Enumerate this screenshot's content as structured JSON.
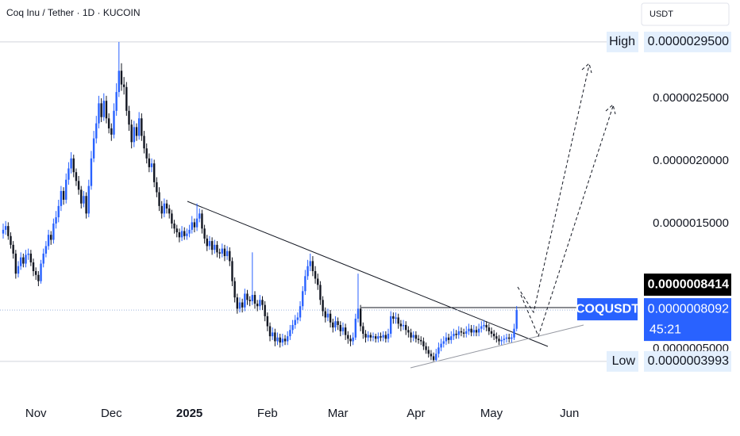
{
  "chart_data": {
    "type": "candlestick",
    "title": "Coq Inu / Tether · 1D · KUCOIN",
    "currency": "USDT",
    "up_color": "#2962ff",
    "down_color": "#131722",
    "grid": false,
    "xlim": [
      -1.26,
      251.1
    ],
    "xticks": [
      {
        "value": 13,
        "label": "Nov"
      },
      {
        "value": 43,
        "label": "Dec"
      },
      {
        "value": 74,
        "label": "2025"
      },
      {
        "value": 105,
        "label": "Feb"
      },
      {
        "value": 133,
        "label": "Mar"
      },
      {
        "value": 164,
        "label": "Apr"
      },
      {
        "value": 194,
        "label": "May"
      },
      {
        "value": 225,
        "label": "Jun"
      }
    ],
    "ylim": [
      1.2e-07,
      3.285e-06
    ],
    "yticks": [
      {
        "value": 2.5e-06,
        "label": "0.0000025000"
      },
      {
        "value": 2e-06,
        "label": "0.0000020000"
      },
      {
        "value": 1.5e-06,
        "label": "0.0000015000"
      },
      {
        "value": 5e-07,
        "label": "0.0000005000"
      }
    ],
    "open": [
      1.42e-06,
      1.45e-06,
      1.48e-06,
      1.4e-06,
      1.33e-06,
      1.26e-06,
      1.1e-06,
      1.16e-06,
      1.23e-06,
      1.18e-06,
      1.25e-06,
      1.26e-06,
      1.19e-06,
      1.12e-06,
      1.09e-06,
      1.04e-06,
      1.18e-06,
      1.26e-06,
      1.32e-06,
      1.41e-06,
      1.37e-06,
      1.5e-06,
      1.55e-06,
      1.64e-06,
      1.76e-06,
      1.69e-06,
      1.85e-06,
      1.94e-06,
      2.02e-06,
      1.91e-06,
      1.84e-06,
      1.77e-06,
      1.66e-06,
      1.72e-06,
      1.58e-06,
      1.8e-06,
      2.02e-06,
      2.18e-06,
      2.3e-06,
      2.46e-06,
      2.35e-06,
      2.48e-06,
      2.34e-06,
      2.26e-06,
      2.21e-06,
      2.4e-06,
      2.55e-06,
      2.72e-06,
      2.61e-06,
      2.59e-06,
      2.4e-06,
      2.29e-06,
      2.15e-06,
      2.27e-06,
      2.2e-06,
      2.34e-06,
      2.2e-06,
      2.1e-06,
      2.02e-06,
      1.95e-06,
      1.98e-06,
      1.83e-06,
      1.75e-06,
      1.64e-06,
      1.58e-06,
      1.66e-06,
      1.62e-06,
      1.58e-06,
      1.5e-06,
      1.46e-06,
      1.43e-06,
      1.39e-06,
      1.44e-06,
      1.4e-06,
      1.42e-06,
      1.45e-06,
      1.51e-06,
      1.47e-06,
      1.54e-06,
      1.58e-06,
      1.46e-06,
      1.38e-06,
      1.32e-06,
      1.36e-06,
      1.29e-06,
      1.33e-06,
      1.27e-06,
      1.26e-06,
      1.3e-06,
      1.24e-06,
      1.28e-06,
      1.2e-06,
      1.04e-06,
      9.1e-07,
      8.2e-07,
      8.7e-07,
      8.3e-07,
      9.4e-07,
      8.9e-07,
      8.8e-07,
      9.3e-07,
      8.6e-07,
      8.4e-07,
      8.9e-07,
      8.5e-07,
      7.6e-07,
      6.8e-07,
      6e-07,
      6.3e-07,
      5.6e-07,
      5.9e-07,
      5.5e-07,
      5.8e-07,
      5.6e-07,
      6e-07,
      6.5e-07,
      6.9e-07,
      7.3e-07,
      7.5e-07,
      8.4e-07,
      9.6e-07,
      1.08e-06,
      1.16e-06,
      1.2e-06,
      1.12e-06,
      1.06e-06,
      1.01e-06,
      8.9e-07,
      8e-07,
      7.5e-07,
      7.8e-07,
      7.1e-07,
      6.7e-07,
      7.2e-07,
      6.9e-07,
      6.4e-07,
      6.7e-07,
      6.1e-07,
      5.8e-07,
      5.6e-07,
      5.9e-07,
      7.4e-07,
      8.2e-07,
      6.8e-07,
      6.2e-07,
      5.9e-07,
      6.1e-07,
      5.9e-07,
      6e-07,
      5.8e-07,
      6e-07,
      5.9e-07,
      6.1e-07,
      5.8e-07,
      6.2e-07,
      7.6e-07,
      7.4e-07,
      7.5e-07,
      7e-07,
      6.8e-07,
      6.9e-07,
      6.5e-07,
      6.3e-07,
      5.9e-07,
      6.1e-07,
      5.8e-07,
      5.7e-07,
      5.6e-07,
      5.2e-07,
      4.9e-07,
      4.6e-07,
      4.4e-07,
      4.1e-07,
      4.6e-07,
      5.1e-07,
      5.4e-07,
      5.6e-07,
      5.9e-07,
      5.7e-07,
      6e-07,
      6.2e-07,
      6.1e-07,
      6.4e-07,
      6.3e-07,
      6.2e-07,
      6.4e-07,
      6.6e-07,
      6.3e-07,
      6.5e-07,
      6.3e-07,
      6.6e-07,
      6.8e-07,
      6.9e-07,
      6.7e-07,
      6.4e-07,
      6.2e-07,
      6e-07,
      5.8e-07,
      5.6e-07,
      5.7e-07,
      5.8e-07,
      5.9e-07,
      5.8e-07,
      5.9e-07,
      6.6e-07
    ],
    "high": [
      1.5e-06,
      1.52e-06,
      1.51e-06,
      1.43e-06,
      1.36e-06,
      1.29e-06,
      1.2e-06,
      1.27e-06,
      1.26e-06,
      1.29e-06,
      1.3e-06,
      1.29e-06,
      1.22e-06,
      1.15e-06,
      1.12e-06,
      1.21e-06,
      1.3e-06,
      1.36e-06,
      1.45e-06,
      1.44e-06,
      1.54e-06,
      1.6e-06,
      1.69e-06,
      1.8e-06,
      1.79e-06,
      1.9e-06,
      1.99e-06,
      2.07e-06,
      2.05e-06,
      1.94e-06,
      1.88e-06,
      1.8e-06,
      1.76e-06,
      1.75e-06,
      1.85e-06,
      2.08e-06,
      2.24e-06,
      2.36e-06,
      2.52e-06,
      2.5e-06,
      2.54e-06,
      2.52e-06,
      2.38e-06,
      2.3e-06,
      2.46e-06,
      2.62e-06,
      2.95e-06,
      2.78e-06,
      2.67e-06,
      2.63e-06,
      2.44e-06,
      2.33e-06,
      2.32e-06,
      2.3e-06,
      2.39e-06,
      2.38e-06,
      2.24e-06,
      2.14e-06,
      2.06e-06,
      2.02e-06,
      2.01e-06,
      1.87e-06,
      1.79e-06,
      1.68e-06,
      1.7e-06,
      1.69e-06,
      1.65e-06,
      1.61e-06,
      1.53e-06,
      1.49e-06,
      1.46e-06,
      1.48e-06,
      1.47e-06,
      1.46e-06,
      1.49e-06,
      1.56e-06,
      1.54e-06,
      1.66e-06,
      1.62e-06,
      1.61e-06,
      1.49e-06,
      1.41e-06,
      1.4e-06,
      1.39e-06,
      1.37e-06,
      1.36e-06,
      1.3e-06,
      1.34e-06,
      1.33e-06,
      1.32e-06,
      1.31e-06,
      1.23e-06,
      1.07e-06,
      9.4e-07,
      9.1e-07,
      9e-07,
      9.8e-07,
      9.7e-07,
      9.2e-07,
      1.27e-06,
      9.6e-07,
      8.9e-07,
      9.3e-07,
      9.2e-07,
      8.8e-07,
      7.9e-07,
      7.1e-07,
      6.7e-07,
      6.6e-07,
      6.3e-07,
      6.2e-07,
      6.2e-07,
      6.1e-07,
      6.4e-07,
      6.9e-07,
      7.3e-07,
      7.7e-07,
      7.9e-07,
      8.8e-07,
      1e-06,
      1.13e-06,
      1.21e-06,
      1.26e-06,
      1.24e-06,
      1.16e-06,
      1.1e-06,
      1.04e-06,
      9.2e-07,
      8.3e-07,
      8.2e-07,
      8.1e-07,
      7.4e-07,
      7.6e-07,
      7.5e-07,
      7.2e-07,
      7.1e-07,
      7e-07,
      6.4e-07,
      6.1e-07,
      6.3e-07,
      7.8e-07,
      1.1e-06,
      8.5e-07,
      7.1e-07,
      6.5e-07,
      6.4e-07,
      6.3e-07,
      6.3e-07,
      6.2e-07,
      6.3e-07,
      6.3e-07,
      6.4e-07,
      6.4e-07,
      6.6e-07,
      8e-07,
      7.9e-07,
      7.9e-07,
      7.8e-07,
      7.3e-07,
      7.3e-07,
      7.2e-07,
      6.8e-07,
      6.6e-07,
      6.4e-07,
      6.4e-07,
      6.1e-07,
      6e-07,
      5.9e-07,
      5.5e-07,
      5.2e-07,
      4.9e-07,
      4.7e-07,
      5e-07,
      5.5e-07,
      5.8e-07,
      6e-07,
      6.3e-07,
      6.2e-07,
      6.4e-07,
      6.6e-07,
      6.5e-07,
      6.8e-07,
      6.7e-07,
      6.6e-07,
      6.8e-07,
      7e-07,
      6.9e-07,
      6.9e-07,
      6.8e-07,
      7e-07,
      7.2e-07,
      7.3e-07,
      7.2e-07,
      7e-07,
      6.7e-07,
      6.5e-07,
      6.3e-07,
      6.1e-07,
      6e-07,
      6.1e-07,
      6.2e-07,
      6.2e-07,
      6.2e-07,
      7e-07,
      8.414e-07
    ],
    "low": [
      1.38e-06,
      1.41e-06,
      1.37e-06,
      1.3e-06,
      1.22e-06,
      1.06e-06,
      1.07e-06,
      1.13e-06,
      1.15e-06,
      1.15e-06,
      1.21e-06,
      1.16e-06,
      1.08e-06,
      1.05e-06,
      1e-06,
      1.02e-06,
      1.15e-06,
      1.23e-06,
      1.29e-06,
      1.33e-06,
      1.34e-06,
      1.46e-06,
      1.51e-06,
      1.6e-06,
      1.65e-06,
      1.66e-06,
      1.81e-06,
      1.9e-06,
      1.87e-06,
      1.8e-06,
      1.73e-06,
      1.62e-06,
      1.63e-06,
      1.54e-06,
      1.55e-06,
      1.77e-06,
      1.99e-06,
      2.14e-06,
      2.26e-06,
      2.31e-06,
      2.32e-06,
      2.3e-06,
      2.22e-06,
      2.16e-06,
      2.18e-06,
      2.36e-06,
      2.51e-06,
      2.56e-06,
      2.53e-06,
      2.36e-06,
      2.24e-06,
      2.1e-06,
      2.11e-06,
      2.16e-06,
      2.17e-06,
      2.16e-06,
      2.06e-06,
      1.98e-06,
      1.91e-06,
      1.91e-06,
      1.79e-06,
      1.71e-06,
      1.6e-06,
      1.54e-06,
      1.55e-06,
      1.58e-06,
      1.54e-06,
      1.46e-06,
      1.42e-06,
      1.39e-06,
      1.35e-06,
      1.36e-06,
      1.37e-06,
      1.37e-06,
      1.39e-06,
      1.42e-06,
      1.43e-06,
      1.44e-06,
      1.51e-06,
      1.42e-06,
      1.34e-06,
      1.28e-06,
      1.29e-06,
      1.25e-06,
      1.26e-06,
      1.23e-06,
      1.22e-06,
      1.23e-06,
      1.2e-06,
      1.21e-06,
      1.16e-06,
      1e-06,
      8.7e-07,
      7.8e-07,
      7.9e-07,
      7.9e-07,
      8e-07,
      8.5e-07,
      8.4e-07,
      8.5e-07,
      8.2e-07,
      8e-07,
      8.1e-07,
      8.1e-07,
      7.2e-07,
      6.4e-07,
      5.6e-07,
      5.7e-07,
      5.2e-07,
      5.3e-07,
      5.1e-07,
      5.2e-07,
      5.3e-07,
      5.3e-07,
      5.7e-07,
      6.2e-07,
      6.6e-07,
      7e-07,
      7.2e-07,
      8.1e-07,
      9.3e-07,
      1.05e-06,
      1.12e-06,
      1.08e-06,
      1.02e-06,
      9.7e-07,
      8.5e-07,
      7.6e-07,
      7.1e-07,
      7.2e-07,
      6.7e-07,
      6.3e-07,
      6.4e-07,
      6.5e-07,
      6e-07,
      6.1e-07,
      5.7e-07,
      5.4e-07,
      5.2e-07,
      5.3e-07,
      5.7e-07,
      7.1e-07,
      6.4e-07,
      5.8e-07,
      5.5e-07,
      5.6e-07,
      5.6e-07,
      5.6e-07,
      5.5e-07,
      5.5e-07,
      5.6e-07,
      5.6e-07,
      5.5e-07,
      5.5e-07,
      5.9e-07,
      7e-07,
      7e-07,
      6.6e-07,
      6.4e-07,
      6.5e-07,
      6.1e-07,
      5.9e-07,
      5.5e-07,
      5.6e-07,
      5.5e-07,
      5.4e-07,
      5.3e-07,
      4.9e-07,
      4.6e-07,
      4.3e-07,
      4.1e-07,
      3.993e-07,
      4e-07,
      4.3e-07,
      4.8e-07,
      5.1e-07,
      5.3e-07,
      5.4e-07,
      5.4e-07,
      5.7e-07,
      5.8e-07,
      5.8e-07,
      6e-07,
      5.9e-07,
      5.9e-07,
      6.1e-07,
      6e-07,
      6e-07,
      6e-07,
      6e-07,
      6.3e-07,
      6.5e-07,
      6.4e-07,
      6.1e-07,
      5.9e-07,
      5.7e-07,
      5.5e-07,
      5.3e-07,
      5.3e-07,
      5.4e-07,
      5.5e-07,
      5.5e-07,
      5.5e-07,
      5.7e-07,
      6.4e-07
    ],
    "close": [
      1.45e-06,
      1.48e-06,
      1.4e-06,
      1.33e-06,
      1.26e-06,
      1.1e-06,
      1.16e-06,
      1.23e-06,
      1.18e-06,
      1.25e-06,
      1.26e-06,
      1.19e-06,
      1.12e-06,
      1.09e-06,
      1.04e-06,
      1.18e-06,
      1.26e-06,
      1.32e-06,
      1.41e-06,
      1.37e-06,
      1.5e-06,
      1.55e-06,
      1.64e-06,
      1.76e-06,
      1.69e-06,
      1.85e-06,
      1.94e-06,
      2.02e-06,
      1.91e-06,
      1.84e-06,
      1.77e-06,
      1.66e-06,
      1.72e-06,
      1.58e-06,
      1.8e-06,
      2.02e-06,
      2.18e-06,
      2.3e-06,
      2.46e-06,
      2.35e-06,
      2.48e-06,
      2.34e-06,
      2.26e-06,
      2.21e-06,
      2.4e-06,
      2.55e-06,
      2.72e-06,
      2.61e-06,
      2.59e-06,
      2.4e-06,
      2.29e-06,
      2.15e-06,
      2.27e-06,
      2.2e-06,
      2.34e-06,
      2.2e-06,
      2.1e-06,
      2.02e-06,
      1.95e-06,
      1.98e-06,
      1.83e-06,
      1.75e-06,
      1.64e-06,
      1.58e-06,
      1.66e-06,
      1.62e-06,
      1.58e-06,
      1.5e-06,
      1.46e-06,
      1.43e-06,
      1.39e-06,
      1.44e-06,
      1.4e-06,
      1.42e-06,
      1.45e-06,
      1.51e-06,
      1.47e-06,
      1.54e-06,
      1.58e-06,
      1.46e-06,
      1.38e-06,
      1.32e-06,
      1.36e-06,
      1.29e-06,
      1.33e-06,
      1.27e-06,
      1.26e-06,
      1.3e-06,
      1.24e-06,
      1.28e-06,
      1.2e-06,
      1.04e-06,
      9.1e-07,
      8.2e-07,
      8.7e-07,
      8.3e-07,
      9.4e-07,
      8.9e-07,
      8.8e-07,
      9.3e-07,
      8.6e-07,
      8.4e-07,
      8.9e-07,
      8.5e-07,
      7.6e-07,
      6.8e-07,
      6e-07,
      6.3e-07,
      5.6e-07,
      5.9e-07,
      5.5e-07,
      5.8e-07,
      5.6e-07,
      6e-07,
      6.5e-07,
      6.9e-07,
      7.3e-07,
      7.5e-07,
      8.4e-07,
      9.6e-07,
      1.08e-06,
      1.16e-06,
      1.2e-06,
      1.12e-06,
      1.06e-06,
      1.01e-06,
      8.9e-07,
      8e-07,
      7.5e-07,
      7.8e-07,
      7.1e-07,
      6.7e-07,
      7.2e-07,
      6.9e-07,
      6.4e-07,
      6.7e-07,
      6.1e-07,
      5.8e-07,
      5.6e-07,
      5.9e-07,
      7.4e-07,
      8.2e-07,
      6.8e-07,
      6.2e-07,
      5.9e-07,
      6.1e-07,
      5.9e-07,
      6e-07,
      5.8e-07,
      6e-07,
      5.9e-07,
      6.1e-07,
      5.8e-07,
      6.2e-07,
      7.6e-07,
      7.4e-07,
      7.5e-07,
      7e-07,
      6.8e-07,
      6.9e-07,
      6.5e-07,
      6.3e-07,
      5.9e-07,
      6.1e-07,
      5.8e-07,
      5.7e-07,
      5.6e-07,
      5.2e-07,
      4.9e-07,
      4.6e-07,
      4.4e-07,
      4.1e-07,
      4.6e-07,
      5.1e-07,
      5.4e-07,
      5.6e-07,
      5.9e-07,
      5.7e-07,
      6e-07,
      6.2e-07,
      6.1e-07,
      6.4e-07,
      6.3e-07,
      6.2e-07,
      6.4e-07,
      6.6e-07,
      6.3e-07,
      6.5e-07,
      6.3e-07,
      6.6e-07,
      6.8e-07,
      6.9e-07,
      6.7e-07,
      6.4e-07,
      6.2e-07,
      6e-07,
      5.8e-07,
      5.6e-07,
      5.7e-07,
      5.8e-07,
      5.9e-07,
      5.8e-07,
      5.9e-07,
      6.6e-07,
      8.092e-07
    ],
    "annotations": {
      "high": {
        "label": "High",
        "value": 2.95e-06,
        "value_label": "0.0000029500"
      },
      "low": {
        "label": "Low",
        "value": 3.993e-07,
        "value_label": "0.0000003993"
      },
      "session_high": {
        "value": 8.414e-07,
        "value_label": "0.0000008414"
      },
      "last": {
        "label": "COQUSDT",
        "value": 8.092e-07,
        "value_label": "0.0000008092",
        "countdown": "45:21"
      }
    }
  }
}
